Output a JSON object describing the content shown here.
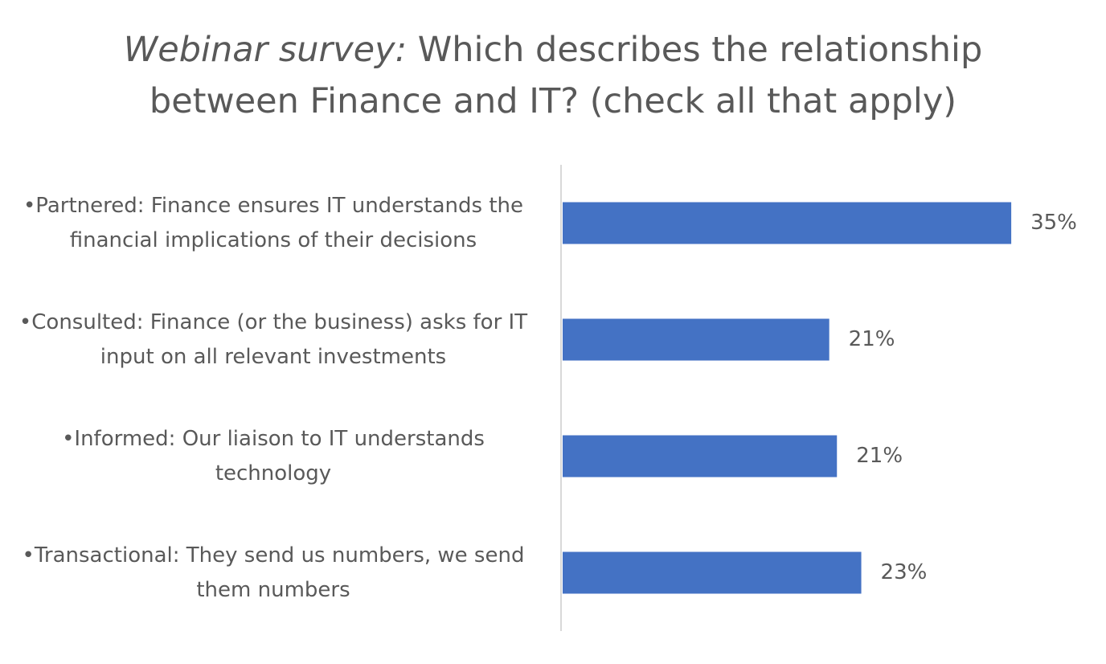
{
  "chart_data": {
    "type": "bar",
    "orientation": "horizontal",
    "title_lead": "Webinar survey:",
    "title": "Which describes the relationship between Finance and IT? (check all that apply)",
    "categories": [
      "•Partnered: Finance ensures IT understands the financial implications of their decisions",
      "•Consulted: Finance (or the business) asks for IT input on all relevant investments",
      "•Informed: Our liaison to IT understands technology",
      "•Transactional: They send us numbers, we send them numbers"
    ],
    "values": [
      35,
      20.8,
      21.4,
      23.3
    ],
    "value_labels": [
      "35%",
      "21%",
      "21%",
      "23%"
    ],
    "color": "#4472c4",
    "xlim": [
      0,
      37
    ]
  }
}
